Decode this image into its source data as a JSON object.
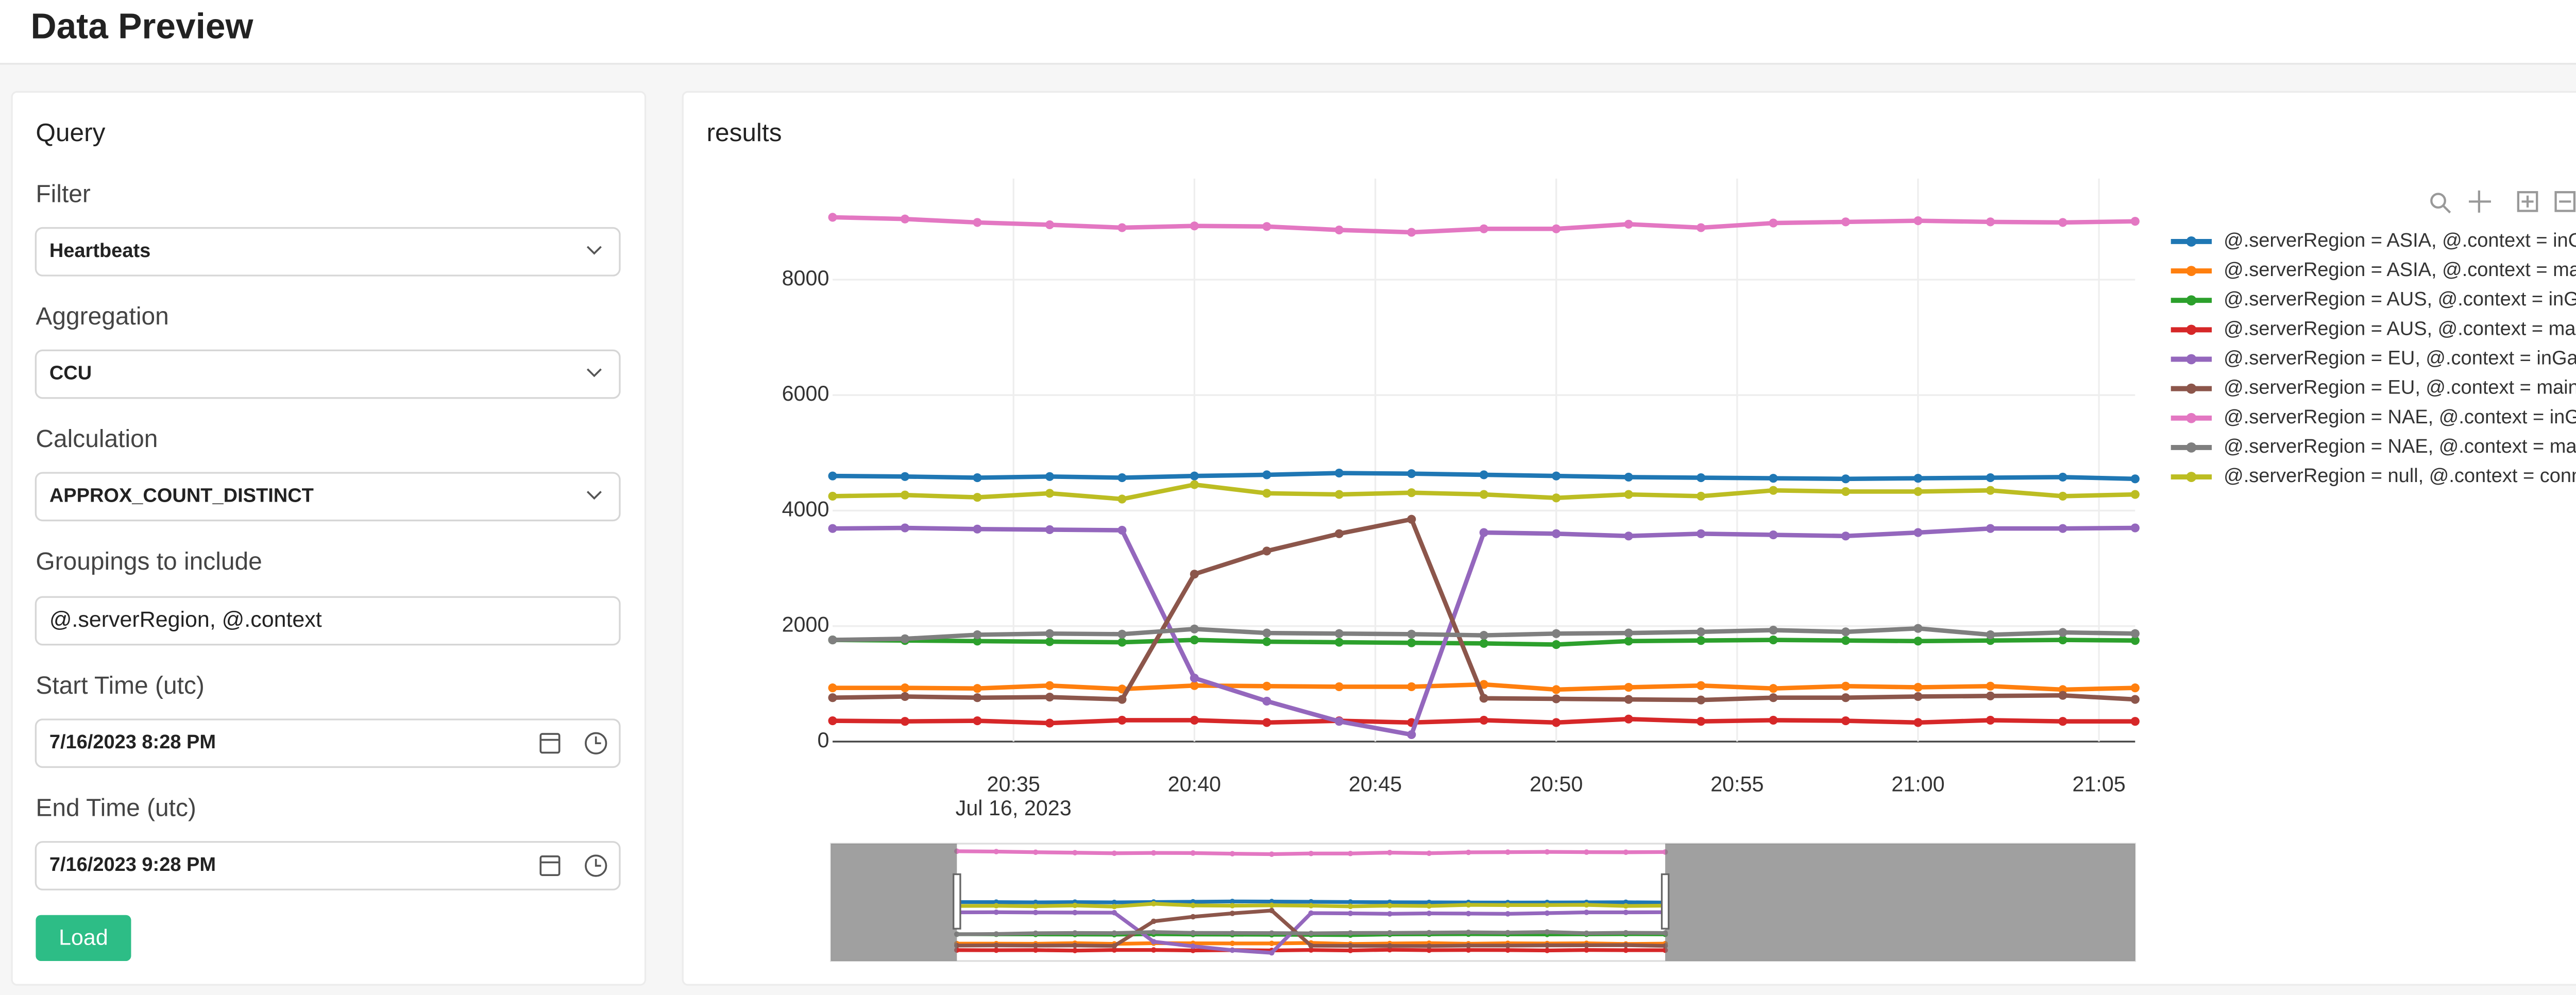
{
  "header": {
    "title": "Data Preview"
  },
  "query": {
    "title": "Query",
    "filter": {
      "label": "Filter",
      "value": "Heartbeats"
    },
    "aggregation": {
      "label": "Aggregation",
      "value": "CCU"
    },
    "calculation": {
      "label": "Calculation",
      "value": "APPROX_COUNT_DISTINCT"
    },
    "groupings": {
      "label": "Groupings to include",
      "value": "@.serverRegion, @.context"
    },
    "start_time": {
      "label": "Start Time (utc)",
      "value": "7/16/2023 8:28 PM"
    },
    "end_time": {
      "label": "End Time (utc)",
      "value": "7/16/2023 9:28 PM"
    },
    "button": "Load"
  },
  "results": {
    "title": "results"
  },
  "chart_data": {
    "type": "line",
    "x": [
      "2023-07-16 20:30",
      "2023-07-16 20:32",
      "2023-07-16 20:34",
      "2023-07-16 20:36",
      "2023-07-16 20:38",
      "2023-07-16 20:40",
      "2023-07-16 20:42",
      "2023-07-16 20:44",
      "2023-07-16 20:46",
      "2023-07-16 20:48",
      "2023-07-16 20:50",
      "2023-07-16 20:52",
      "2023-07-16 20:54",
      "2023-07-16 20:56",
      "2023-07-16 20:58",
      "2023-07-16 21:00",
      "2023-07-16 21:02",
      "2023-07-16 21:04",
      "2023-07-16 21:06"
    ],
    "xlim": [
      "2023-07-16 20:30",
      "2023-07-16 21:06"
    ],
    "xticks": [
      {
        "value": "2023-07-16 20:35",
        "label": "20:35"
      },
      {
        "value": "2023-07-16 20:40",
        "label": "20:40"
      },
      {
        "value": "2023-07-16 20:45",
        "label": "20:45"
      },
      {
        "value": "2023-07-16 20:50",
        "label": "20:50"
      },
      {
        "value": "2023-07-16 20:55",
        "label": "20:55"
      },
      {
        "value": "2023-07-16 21:00",
        "label": "21:00"
      },
      {
        "value": "2023-07-16 21:05",
        "label": "21:05"
      }
    ],
    "x_date_label": "Jul 16, 2023",
    "ylim": [
      0,
      9750
    ],
    "yticks": [
      0,
      2000,
      4000,
      6000,
      8000
    ],
    "grid": true,
    "legend": "right",
    "series": [
      {
        "name": "@.serverRegion = ASIA, @.context = inGame",
        "color": "#1f77b4",
        "values": [
          4600,
          4590,
          4570,
          4590,
          4570,
          4600,
          4620,
          4650,
          4640,
          4620,
          4600,
          4580,
          4570,
          4560,
          4550,
          4560,
          4570,
          4580,
          4550
        ]
      },
      {
        "name": "@.serverRegion = ASIA, @.context = mainMenu",
        "color": "#ff7f0e",
        "values": [
          930,
          930,
          920,
          970,
          910,
          970,
          960,
          950,
          950,
          990,
          900,
          940,
          970,
          920,
          960,
          940,
          960,
          900,
          930
        ]
      },
      {
        "name": "@.serverRegion = AUS, @.context = inGame",
        "color": "#2ca02c",
        "values": [
          1760,
          1750,
          1740,
          1730,
          1720,
          1760,
          1730,
          1720,
          1710,
          1700,
          1680,
          1740,
          1750,
          1760,
          1750,
          1740,
          1750,
          1760,
          1750
        ]
      },
      {
        "name": "@.serverRegion = AUS, @.context = mainMenu",
        "color": "#d62728",
        "values": [
          360,
          350,
          360,
          320,
          370,
          370,
          330,
          360,
          330,
          370,
          330,
          390,
          350,
          370,
          360,
          330,
          370,
          350,
          350
        ]
      },
      {
        "name": "@.serverRegion = EU, @.context = inGame",
        "color": "#9467bd",
        "values": [
          3690,
          3700,
          3680,
          3670,
          3660,
          1100,
          700,
          350,
          120,
          3620,
          3600,
          3560,
          3600,
          3580,
          3560,
          3620,
          3690,
          3690,
          3700
        ]
      },
      {
        "name": "@.serverRegion = EU, @.context = mainMenu",
        "color": "#8c564b",
        "values": [
          760,
          780,
          760,
          770,
          730,
          2900,
          3300,
          3600,
          3850,
          750,
          740,
          730,
          720,
          760,
          760,
          780,
          790,
          800,
          730
        ]
      },
      {
        "name": "@.serverRegion = NAE, @.context = inGame",
        "color": "#e377c2",
        "values": [
          9080,
          9050,
          8990,
          8950,
          8900,
          8930,
          8920,
          8860,
          8820,
          8880,
          8880,
          8960,
          8900,
          8980,
          9000,
          9020,
          9000,
          8990,
          9010
        ]
      },
      {
        "name": "@.serverRegion = NAE, @.context = mainMenu",
        "color": "#7f7f7f",
        "values": [
          1760,
          1780,
          1850,
          1870,
          1860,
          1950,
          1880,
          1870,
          1860,
          1840,
          1870,
          1880,
          1900,
          1930,
          1900,
          1960,
          1850,
          1890,
          1870
        ]
      },
      {
        "name": "@.serverRegion = null, @.context = connecting",
        "color": "#bcbd22",
        "values": [
          4250,
          4270,
          4230,
          4300,
          4200,
          4450,
          4300,
          4280,
          4310,
          4280,
          4220,
          4280,
          4250,
          4350,
          4330,
          4330,
          4350,
          4250,
          4280
        ]
      }
    ]
  }
}
